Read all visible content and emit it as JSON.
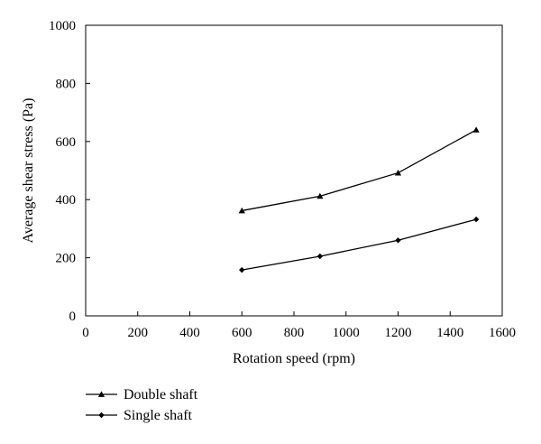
{
  "chart_data": {
    "type": "line",
    "title": "",
    "xlabel": "Rotation speed (rpm)",
    "ylabel": "Average shear stress (Pa)",
    "xlim": [
      0,
      1600
    ],
    "ylim": [
      0,
      1000
    ],
    "xticks": [
      0,
      200,
      400,
      600,
      800,
      1000,
      1200,
      1400,
      1600
    ],
    "yticks": [
      0,
      200,
      400,
      600,
      800,
      1000
    ],
    "grid": false,
    "legend_position": "bottom-left, below plot",
    "x": [
      600,
      900,
      1200,
      1500
    ],
    "series": [
      {
        "name": "Double shaft",
        "marker": "triangle",
        "color": "#000000",
        "values": [
          362,
          412,
          492,
          640
        ]
      },
      {
        "name": "Single shaft",
        "marker": "diamond",
        "color": "#000000",
        "values": [
          158,
          205,
          260,
          332
        ]
      }
    ]
  }
}
